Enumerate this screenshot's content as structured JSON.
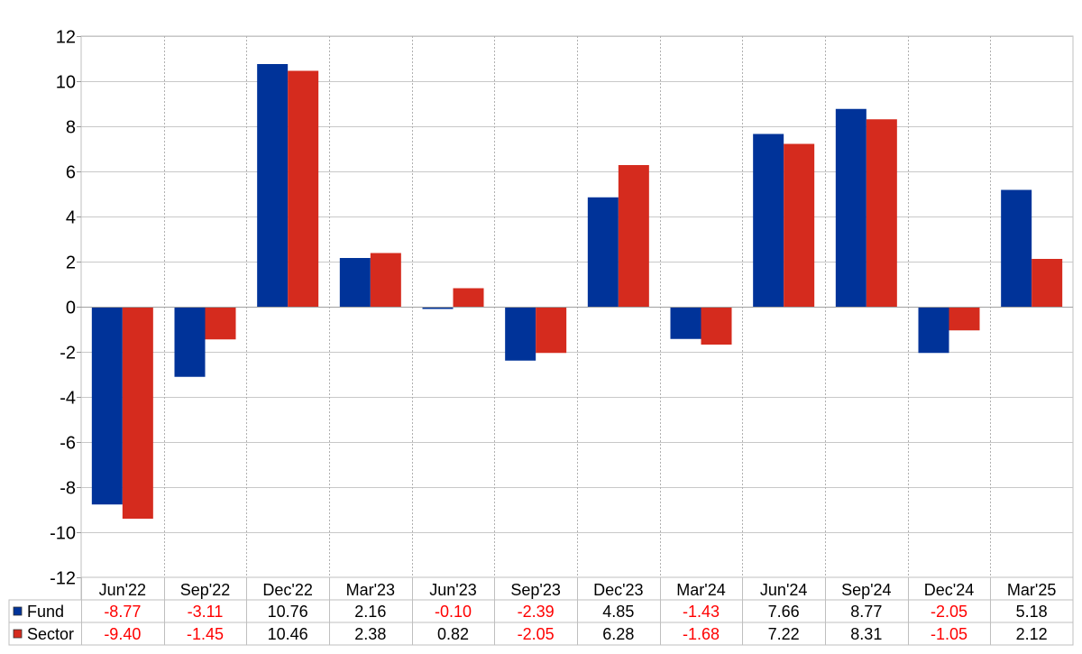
{
  "chart_data": {
    "type": "bar",
    "categories": [
      "Jun'22",
      "Sep'22",
      "Dec'22",
      "Mar'23",
      "Jun'23",
      "Sep'23",
      "Dec'23",
      "Mar'24",
      "Jun'24",
      "Sep'24",
      "Dec'24",
      "Mar'25"
    ],
    "series": [
      {
        "name": "Fund",
        "color": "#003399",
        "values": [
          -8.77,
          -3.11,
          10.76,
          2.16,
          -0.1,
          -2.39,
          4.85,
          -1.43,
          7.66,
          8.77,
          -2.05,
          5.18
        ],
        "labels": [
          "-8.77",
          "-3.11",
          "10.76",
          "2.16",
          "-0.10",
          "-2.39",
          "4.85",
          "-1.43",
          "7.66",
          "8.77",
          "-2.05",
          "5.18"
        ]
      },
      {
        "name": "Sector",
        "color": "#d52b1e",
        "values": [
          -9.4,
          -1.45,
          10.46,
          2.38,
          0.82,
          -2.05,
          6.28,
          -1.68,
          7.22,
          8.31,
          -1.05,
          2.12
        ],
        "labels": [
          "-9.40",
          "-1.45",
          "10.46",
          "2.38",
          "0.82",
          "-2.05",
          "6.28",
          "-1.68",
          "7.22",
          "8.31",
          "-1.05",
          "2.12"
        ]
      }
    ],
    "ylim": [
      -12,
      12
    ],
    "yticks": [
      "12",
      "10",
      "8",
      "6",
      "4",
      "2",
      "0",
      "-2",
      "-4",
      "-6",
      "-8",
      "-10",
      "-12"
    ],
    "grid": true,
    "legend": "data-table-below",
    "negative_color": "#ff0000",
    "positive_color": "#000000"
  }
}
